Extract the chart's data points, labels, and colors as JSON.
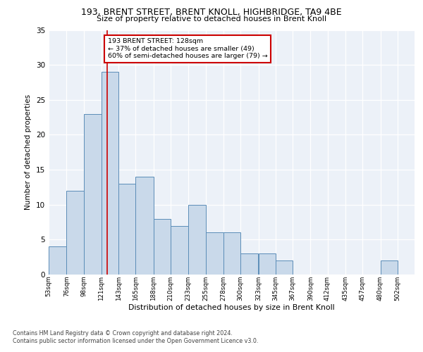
{
  "title": "193, BRENT STREET, BRENT KNOLL, HIGHBRIDGE, TA9 4BE",
  "subtitle": "Size of property relative to detached houses in Brent Knoll",
  "xlabel": "Distribution of detached houses by size in Brent Knoll",
  "ylabel": "Number of detached properties",
  "categories": [
    "53sqm",
    "76sqm",
    "98sqm",
    "121sqm",
    "143sqm",
    "165sqm",
    "188sqm",
    "210sqm",
    "233sqm",
    "255sqm",
    "278sqm",
    "300sqm",
    "323sqm",
    "345sqm",
    "367sqm",
    "390sqm",
    "412sqm",
    "435sqm",
    "457sqm",
    "480sqm",
    "502sqm"
  ],
  "bar_edges": [
    53,
    76,
    98,
    121,
    143,
    165,
    188,
    210,
    233,
    255,
    278,
    300,
    323,
    345,
    367,
    390,
    412,
    435,
    457,
    480,
    502
  ],
  "values": [
    4,
    12,
    23,
    29,
    13,
    14,
    8,
    7,
    10,
    6,
    6,
    3,
    3,
    2,
    0,
    0,
    0,
    0,
    0,
    2,
    0
  ],
  "bar_color": "#c9d9ea",
  "bar_edge_color": "#5b8db8",
  "property_line_x": 128,
  "property_line_color": "#cc0000",
  "annotation_text": "193 BRENT STREET: 128sqm\n← 37% of detached houses are smaller (49)\n60% of semi-detached houses are larger (79) →",
  "annotation_box_color": "#ffffff",
  "annotation_box_edge": "#cc0000",
  "background_color": "#ecf1f8",
  "grid_color": "#ffffff",
  "ylim": [
    0,
    35
  ],
  "yticks": [
    0,
    5,
    10,
    15,
    20,
    25,
    30,
    35
  ],
  "footer_line1": "Contains HM Land Registry data © Crown copyright and database right 2024.",
  "footer_line2": "Contains public sector information licensed under the Open Government Licence v3.0."
}
